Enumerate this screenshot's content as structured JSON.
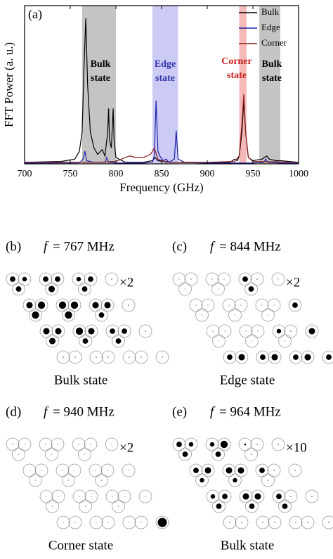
{
  "chart_data": {
    "type": "line",
    "panel_label": "(a)",
    "xlabel": "Frequency (GHz)",
    "ylabel": "FFT Power (a. u.)",
    "xlim": [
      700,
      1000
    ],
    "xticks": [
      700,
      750,
      800,
      850,
      900,
      950,
      1000
    ],
    "ylim": [
      0,
      1
    ],
    "legend": "upper right",
    "bands": [
      {
        "from": 763,
        "to": 800,
        "color": "#c4c4c4",
        "label": [
          "Bulk",
          "state"
        ],
        "label_color": "#000000"
      },
      {
        "from": 840,
        "to": 868,
        "color": "#cbcbf6",
        "label": [
          "Edge",
          "state"
        ],
        "label_color": "#3333aa"
      },
      {
        "from": 935,
        "to": 943,
        "color": "#f6b9b9",
        "label": [
          "Corner",
          "state"
        ],
        "label_color": "#cc2222"
      },
      {
        "from": 957,
        "to": 980,
        "color": "#c4c4c4",
        "label": [
          "Bulk",
          "state"
        ],
        "label_color": "#000000"
      }
    ],
    "series": [
      {
        "name": "Bulk",
        "color": "#000000",
        "x": [
          700,
          740,
          755,
          760,
          763,
          765,
          767,
          769,
          772,
          776,
          780,
          785,
          788,
          791,
          792,
          793,
          795,
          797,
          798,
          800,
          810,
          830,
          840,
          843,
          846,
          860,
          900,
          925,
          930,
          933,
          935,
          938,
          940,
          942,
          945,
          950,
          960,
          965,
          968,
          975,
          980,
          1000
        ],
        "values": [
          0.01,
          0.015,
          0.03,
          0.08,
          0.2,
          0.6,
          0.92,
          0.5,
          0.2,
          0.1,
          0.06,
          0.09,
          0.05,
          0.2,
          0.35,
          0.15,
          0.1,
          0.35,
          0.15,
          0.04,
          0.01,
          0.01,
          0.02,
          0.04,
          0.02,
          0.01,
          0.005,
          0.01,
          0.03,
          0.02,
          0.05,
          0.2,
          0.4,
          0.2,
          0.04,
          0.02,
          0.03,
          0.05,
          0.03,
          0.02,
          0.02,
          0.01
        ]
      },
      {
        "name": "Edge",
        "color": "#1f1fa8",
        "x": [
          700,
          760,
          764,
          766,
          768,
          775,
          788,
          790,
          792,
          800,
          830,
          840,
          842,
          844,
          846,
          848,
          852,
          855,
          858,
          864,
          866,
          868,
          875,
          900,
          950,
          962,
          964,
          966,
          980,
          1000
        ],
        "values": [
          0.005,
          0.006,
          0.03,
          0.08,
          0.02,
          0.01,
          0.01,
          0.04,
          0.01,
          0.005,
          0.005,
          0.01,
          0.05,
          0.4,
          0.08,
          0.05,
          0.02,
          0.03,
          0.01,
          0.03,
          0.21,
          0.03,
          0.01,
          0.005,
          0.005,
          0.01,
          0.03,
          0.01,
          0.005,
          0.005
        ]
      },
      {
        "name": "Corner",
        "color": "#8b1a1a",
        "x": [
          700,
          780,
          800,
          810,
          815,
          822,
          830,
          838,
          842,
          846,
          855,
          900,
          930,
          935,
          938,
          940,
          942,
          945,
          950,
          1000
        ],
        "values": [
          0.01,
          0.01,
          0.015,
          0.04,
          0.05,
          0.04,
          0.04,
          0.06,
          0.1,
          0.03,
          0.01,
          0.01,
          0.015,
          0.05,
          0.25,
          0.44,
          0.2,
          0.04,
          0.015,
          0.01
        ]
      }
    ]
  },
  "panels": [
    {
      "label": "(b)",
      "symbol": "f",
      "frequency": "= 767 MHz",
      "scale": "×2",
      "caption": "Bulk state",
      "amplitudes": [
        0.6,
        0.5,
        0.6,
        0.6,
        0.6,
        0.7,
        0.5,
        0.6,
        0.6,
        0.1,
        0.7,
        0.8,
        0.8,
        0.8,
        0.8,
        0.8,
        0.7,
        0.7,
        0.6,
        0.1,
        0.7,
        0.7,
        0.7,
        0.8,
        0.7,
        0.6,
        0.6,
        0.6,
        0.6,
        0.1,
        0.1,
        0.1,
        0.1,
        0.1,
        0.1,
        0.1,
        0.1
      ]
    },
    {
      "label": "(c)",
      "symbol": "f",
      "frequency": "= 844 MHz",
      "scale": "×2",
      "caption": "Edge state",
      "amplitudes": [
        0,
        0,
        0,
        0,
        0,
        0,
        0.6,
        0.1,
        0.6,
        0,
        0,
        0,
        0,
        0,
        0,
        0,
        0,
        0,
        0,
        0.6,
        0,
        0,
        0,
        0,
        0,
        0,
        0.5,
        0.1,
        0,
        0.7,
        0.6,
        0.7,
        0.6,
        0.7,
        0.6,
        0.7,
        0.6
      ]
    },
    {
      "label": "(d)",
      "symbol": "f",
      "frequency": "= 940 MHz",
      "scale": "×2",
      "caption": "Corner state",
      "amplitudes": [
        0,
        0,
        0,
        0,
        0,
        0,
        0,
        0,
        0,
        0,
        0,
        0,
        0,
        0,
        0,
        0,
        0,
        0,
        0,
        0,
        0,
        0,
        0,
        0,
        0,
        0,
        0,
        0,
        0,
        0,
        0,
        0,
        0,
        0,
        0,
        0,
        1
      ]
    },
    {
      "label": "(e)",
      "symbol": "f",
      "frequency": "= 964 MHz",
      "scale": "×10",
      "caption": "Bulk state",
      "amplitudes": [
        0.6,
        0.5,
        0.6,
        0.5,
        0.8,
        0.6,
        0.2,
        0.1,
        0.1,
        0.1,
        0.6,
        0.7,
        0.5,
        0.7,
        0.7,
        0.5,
        0.6,
        0.1,
        0.1,
        0.1,
        0.5,
        0.6,
        0.6,
        0.7,
        0.7,
        0.6,
        0.6,
        0.1,
        0.6,
        0.1,
        0.1,
        0.1,
        0.1,
        0.1,
        0.1,
        0.1,
        0.1
      ]
    }
  ]
}
